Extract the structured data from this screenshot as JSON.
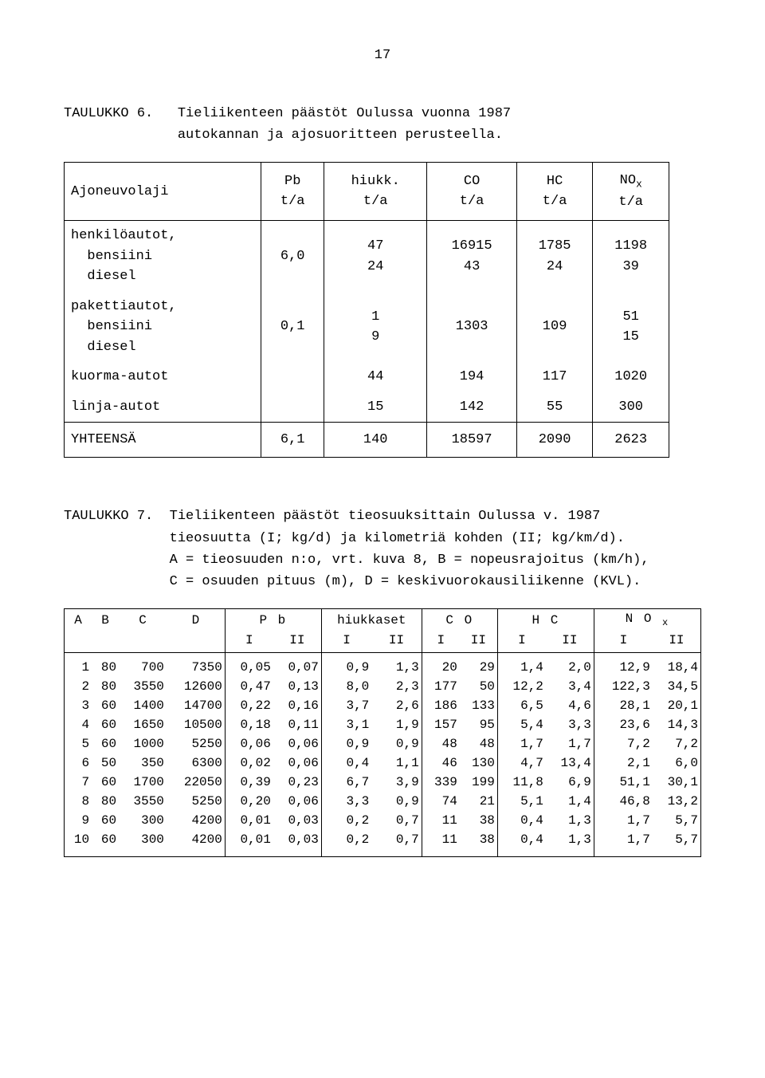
{
  "page_number": "17",
  "table6": {
    "label": "TAULUKKO 6.",
    "title_line1": "Tieliikenteen päästöt Oulussa vuonna 1987",
    "title_line2": "autokannan ja ajosuoritteen perusteella.",
    "headers": {
      "c0": "Ajoneuvolaji",
      "c1a": "Pb",
      "c1b": "t/a",
      "c2a": "hiukk.",
      "c2b": "t/a",
      "c3a": "CO",
      "c3b": "t/a",
      "c4a": "HC",
      "c4b": "t/a",
      "c5a": "NO",
      "c5sub": "x",
      "c5b": "t/a"
    },
    "rows": [
      {
        "label": "henkilöautot,\n  bensiini\n  diesel",
        "pb": "6,0",
        "hiukk": "47\n24",
        "co": "16915\n43",
        "hc": "1785\n24",
        "nox": "1198\n39"
      },
      {
        "label": "pakettiautot,\n  bensiini\n  diesel",
        "pb": "0,1",
        "hiukk": "1\n9",
        "co": "1303",
        "hc": "109",
        "nox": "51\n15"
      },
      {
        "label": "kuorma-autot",
        "pb": "",
        "hiukk": "44",
        "co": "194",
        "hc": "117",
        "nox": "1020"
      },
      {
        "label": "linja-autot",
        "pb": "",
        "hiukk": "15",
        "co": "142",
        "hc": "55",
        "nox": "300"
      }
    ],
    "total": {
      "label": "YHTEENSÄ",
      "pb": "6,1",
      "hiukk": "140",
      "co": "18597",
      "hc": "2090",
      "nox": "2623"
    }
  },
  "table7": {
    "label": "TAULUKKO 7.",
    "title_line1": "Tieliikenteen päästöt tieosuuksittain Oulussa v. 1987",
    "title_line2": "tieosuutta (I; kg/d) ja kilometriä kohden (II; kg/km/d).",
    "title_line3": "A = tieosuuden n:o, vrt. kuva 8, B = nopeusrajoitus (km/h),",
    "title_line4": "C = osuuden pituus (m), D = keskivuorokausiliikenne (KVL).",
    "headers": {
      "A": "A",
      "B": "B",
      "C": "C",
      "D": "D",
      "Pb": "P b",
      "hiukk": "hiukkaset",
      "CO": "C O",
      "HC": "H C",
      "NOx_a": "N O",
      "NOx_sub": "x",
      "I": "I",
      "II": "II"
    },
    "rows": [
      {
        "A": "1",
        "B": "80",
        "C": "700",
        "D": "7350",
        "Pb1": "0,05",
        "Pb2": "0,07",
        "h1": "0,9",
        "h2": "1,3",
        "CO1": "20",
        "CO2": "29",
        "HC1": "1,4",
        "HC2": "2,0",
        "N1": "12,9",
        "N2": "18,4"
      },
      {
        "A": "2",
        "B": "80",
        "C": "3550",
        "D": "12600",
        "Pb1": "0,47",
        "Pb2": "0,13",
        "h1": "8,0",
        "h2": "2,3",
        "CO1": "177",
        "CO2": "50",
        "HC1": "12,2",
        "HC2": "3,4",
        "N1": "122,3",
        "N2": "34,5"
      },
      {
        "A": "3",
        "B": "60",
        "C": "1400",
        "D": "14700",
        "Pb1": "0,22",
        "Pb2": "0,16",
        "h1": "3,7",
        "h2": "2,6",
        "CO1": "186",
        "CO2": "133",
        "HC1": "6,5",
        "HC2": "4,6",
        "N1": "28,1",
        "N2": "20,1"
      },
      {
        "A": "4",
        "B": "60",
        "C": "1650",
        "D": "10500",
        "Pb1": "0,18",
        "Pb2": "0,11",
        "h1": "3,1",
        "h2": "1,9",
        "CO1": "157",
        "CO2": "95",
        "HC1": "5,4",
        "HC2": "3,3",
        "N1": "23,6",
        "N2": "14,3"
      },
      {
        "A": "5",
        "B": "60",
        "C": "1000",
        "D": "5250",
        "Pb1": "0,06",
        "Pb2": "0,06",
        "h1": "0,9",
        "h2": "0,9",
        "CO1": "48",
        "CO2": "48",
        "HC1": "1,7",
        "HC2": "1,7",
        "N1": "7,2",
        "N2": "7,2"
      },
      {
        "A": "6",
        "B": "50",
        "C": "350",
        "D": "6300",
        "Pb1": "0,02",
        "Pb2": "0,06",
        "h1": "0,4",
        "h2": "1,1",
        "CO1": "46",
        "CO2": "130",
        "HC1": "4,7",
        "HC2": "13,4",
        "N1": "2,1",
        "N2": "6,0"
      },
      {
        "A": "7",
        "B": "60",
        "C": "1700",
        "D": "22050",
        "Pb1": "0,39",
        "Pb2": "0,23",
        "h1": "6,7",
        "h2": "3,9",
        "CO1": "339",
        "CO2": "199",
        "HC1": "11,8",
        "HC2": "6,9",
        "N1": "51,1",
        "N2": "30,1"
      },
      {
        "A": "8",
        "B": "80",
        "C": "3550",
        "D": "5250",
        "Pb1": "0,20",
        "Pb2": "0,06",
        "h1": "3,3",
        "h2": "0,9",
        "CO1": "74",
        "CO2": "21",
        "HC1": "5,1",
        "HC2": "1,4",
        "N1": "46,8",
        "N2": "13,2"
      },
      {
        "A": "9",
        "B": "60",
        "C": "300",
        "D": "4200",
        "Pb1": "0,01",
        "Pb2": "0,03",
        "h1": "0,2",
        "h2": "0,7",
        "CO1": "11",
        "CO2": "38",
        "HC1": "0,4",
        "HC2": "1,3",
        "N1": "1,7",
        "N2": "5,7"
      },
      {
        "A": "10",
        "B": "60",
        "C": "300",
        "D": "4200",
        "Pb1": "0,01",
        "Pb2": "0,03",
        "h1": "0,2",
        "h2": "0,7",
        "CO1": "11",
        "CO2": "38",
        "HC1": "0,4",
        "HC2": "1,3",
        "N1": "1,7",
        "N2": "5,7"
      }
    ]
  }
}
